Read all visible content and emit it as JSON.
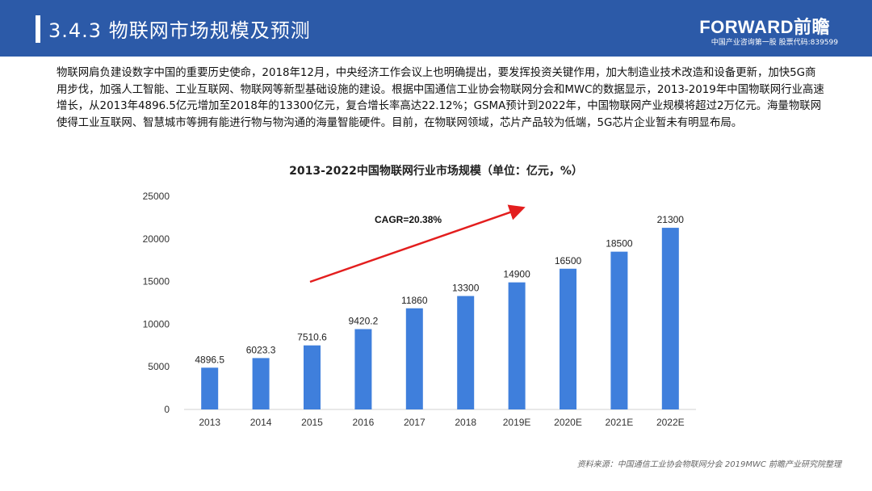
{
  "header": {
    "title": "3.4.3 物联网市场规模及预测",
    "logo": "FORWARD前瞻",
    "logo_sub": "中国产业咨询第一股 股票代码:839599"
  },
  "intro_text": "物联网肩负建设数字中国的重要历史使命，2018年12月，中央经济工作会议上也明确提出，要发挥投资关键作用，加大制造业技术改造和设备更新，加快5G商用步伐，加强人工智能、工业互联网、物联网等新型基础设施的建设。根据中国通信工业协会物联网分会和MWC的数据显示，2013-2019年中国物联网行业高速增长，从2013年4896.5亿元增加至2018年的13300亿元，复合增长率高达22.12%；GSMA预计到2022年，中国物联网产业规模将超过2万亿元。海量物联网使得工业互联网、智慧城市等拥有能进行物与物沟通的海量智能硬件。目前，在物联网领域，芯片产品较为低端，5G芯片企业暂未有明显布局。",
  "source": "资料来源：中国通信工业协会物联网分会 2019MWC 前瞻产业研究院整理",
  "colors": {
    "header_bg": "#2c5aa8",
    "bar": "#3f7fdc",
    "arrow": "#e31e1e"
  },
  "chart_data": {
    "type": "bar",
    "title": "2013-2022中国物联网行业市场规模（单位：亿元，%）",
    "categories": [
      "2013",
      "2014",
      "2015",
      "2016",
      "2017",
      "2018",
      "2019E",
      "2020E",
      "2021E",
      "2022E"
    ],
    "values": [
      4896.5,
      6023.3,
      7510.6,
      9420.2,
      11860,
      13300,
      14900,
      16500,
      18500,
      21300
    ],
    "value_labels": [
      "4896.5",
      "6023.3",
      "7510.6",
      "9420.2",
      "11860",
      "13300",
      "14900",
      "16500",
      "18500",
      "21300"
    ],
    "ylim": [
      0,
      25000
    ],
    "yticks": [
      "0",
      "5000",
      "10000",
      "15000",
      "20000",
      "25000"
    ],
    "grid": false,
    "legend": "none",
    "annotation": "CAGR=20.38%"
  }
}
